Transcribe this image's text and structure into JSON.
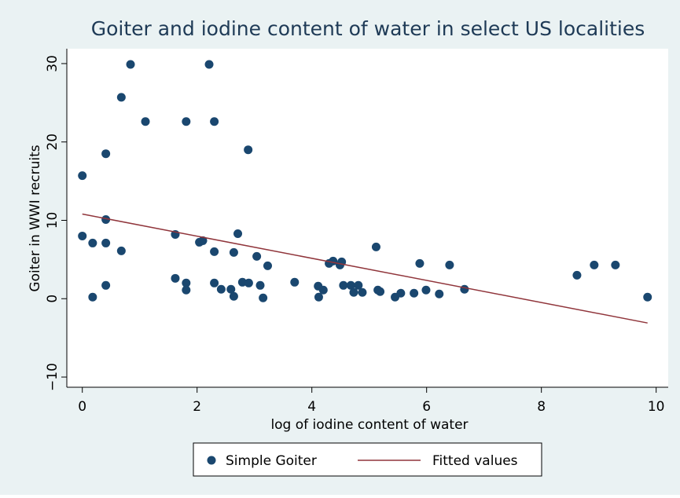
{
  "chart_data": {
    "type": "scatter",
    "title": "Goiter and iodine content of water in select US localities",
    "x_label": "log of iodine content of water",
    "y_label": "Goiter in WWI recruits",
    "xlim": [
      -0.27,
      10.21
    ],
    "ylim": [
      -11.3,
      31.9
    ],
    "xticks": [
      0,
      2,
      4,
      6,
      8,
      10
    ],
    "yticks": [
      {
        "value": -10,
        "label": "−10"
      },
      0,
      10,
      20,
      30
    ],
    "grid": false,
    "legend": "bottom",
    "series": [
      {
        "name": "Simple Goiter",
        "color": "#1a476f",
        "type": "scatter",
        "x": [
          0,
          0,
          0.18,
          0.18,
          0.41,
          0.41,
          0.41,
          0.41,
          0.68,
          0.68,
          0.84,
          1.1,
          1.62,
          1.62,
          1.81,
          1.81,
          1.81,
          2.04,
          2.1,
          2.21,
          2.3,
          2.3,
          2.3,
          2.42,
          2.59,
          2.64,
          2.64,
          2.71,
          2.79,
          2.89,
          2.9,
          3.04,
          3.1,
          3.15,
          3.23,
          3.7,
          4.11,
          4.12,
          4.2,
          4.3,
          4.37,
          4.49,
          4.52,
          4.55,
          4.68,
          4.73,
          4.81,
          4.88,
          5.12,
          5.15,
          5.19,
          5.45,
          5.55,
          5.78,
          5.88,
          5.99,
          6.22,
          6.4,
          6.66,
          8.62,
          8.92,
          9.29,
          9.85
        ],
        "values": [
          15.7,
          8.0,
          7.1,
          0.2,
          18.5,
          10.1,
          7.1,
          1.7,
          25.7,
          6.1,
          29.9,
          22.6,
          8.2,
          2.6,
          22.6,
          2.0,
          1.1,
          7.2,
          7.4,
          29.9,
          22.6,
          6.0,
          2.0,
          1.2,
          1.2,
          5.9,
          0.3,
          8.3,
          2.1,
          19.0,
          2.0,
          5.4,
          1.7,
          0.1,
          4.2,
          2.1,
          1.6,
          0.2,
          1.1,
          4.5,
          4.8,
          4.3,
          4.7,
          1.7,
          1.7,
          0.8,
          1.7,
          0.8,
          6.6,
          1.1,
          0.9,
          0.2,
          0.7,
          0.7,
          4.5,
          1.1,
          0.6,
          4.3,
          1.2,
          3.0,
          4.3,
          4.3,
          0.2
        ]
      },
      {
        "name": "Fitted values",
        "color": "#90353b",
        "type": "line",
        "x": [
          0,
          9.85
        ],
        "values": [
          10.8,
          -3.1
        ]
      }
    ]
  }
}
